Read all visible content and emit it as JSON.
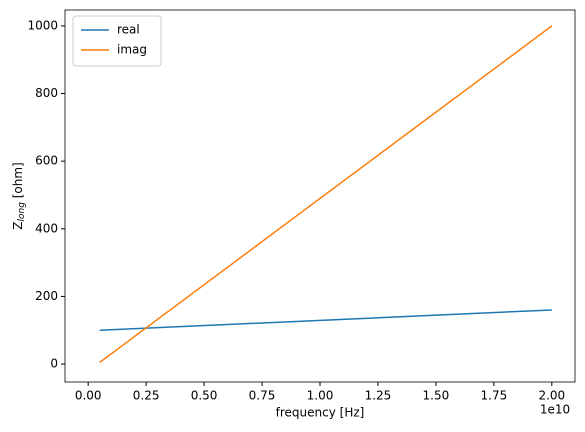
{
  "chart_data": {
    "type": "line",
    "xlabel": "frequency [Hz]",
    "ylabel": {
      "symbol": "Z",
      "subscript": "long",
      "unit": " [ohm]"
    },
    "x_offset_label": "1e10",
    "x": [
      0.05,
      2.0
    ],
    "series": [
      {
        "name": "real",
        "color": "#1f77b4",
        "values": [
          100,
          160
        ]
      },
      {
        "name": "imag",
        "color": "#ff7f0e",
        "values": [
          5,
          1000
        ]
      }
    ],
    "xlim": [
      -0.1,
      2.1
    ],
    "ylim": [
      -53,
      1047
    ],
    "xticks": [
      {
        "value": 0,
        "label": "0.00"
      },
      {
        "value": 0.25,
        "label": "0.25"
      },
      {
        "value": 0.5,
        "label": "0.50"
      },
      {
        "value": 0.75,
        "label": "0.75"
      },
      {
        "value": 1,
        "label": "1.00"
      },
      {
        "value": 1.25,
        "label": "1.25"
      },
      {
        "value": 1.5,
        "label": "1.50"
      },
      {
        "value": 1.75,
        "label": "1.75"
      },
      {
        "value": 2,
        "label": "2.00"
      }
    ],
    "yticks": [
      0,
      200,
      400,
      600,
      800,
      1000
    ],
    "legend": "upper left",
    "grid": false
  }
}
